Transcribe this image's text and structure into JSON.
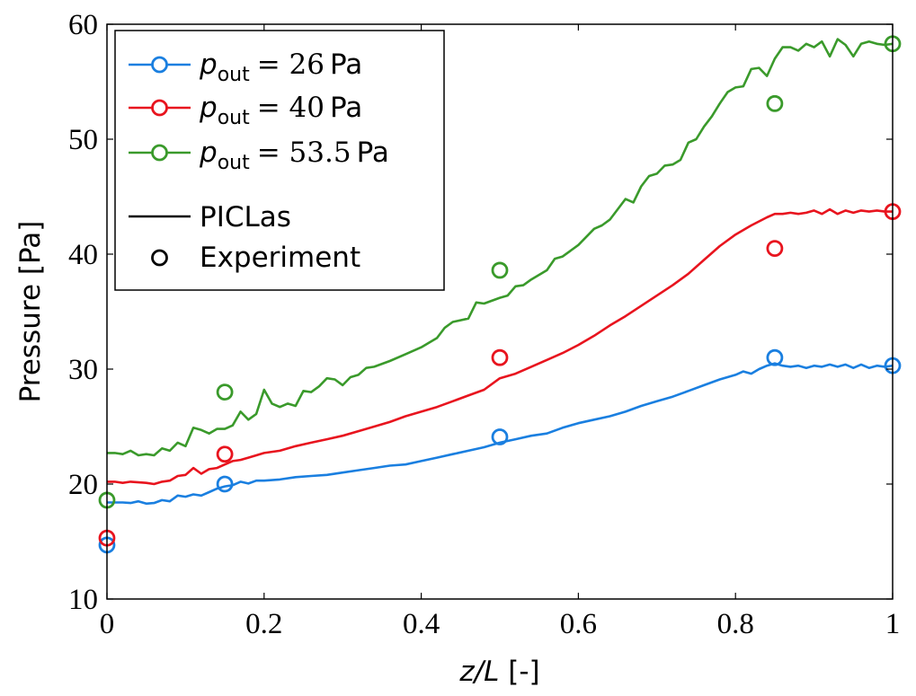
{
  "chart_data": {
    "type": "line",
    "xlabel": "z/L [-]",
    "ylabel": "Pressure [Pa]",
    "xlim": [
      0,
      1
    ],
    "ylim": [
      10,
      60
    ],
    "xticks": [
      "0",
      "0.2",
      "0.4",
      "0.6",
      "0.8",
      "1"
    ],
    "yticks": [
      "10",
      "20",
      "30",
      "40",
      "50",
      "60"
    ],
    "grid": false,
    "legend_position": "top-left",
    "series": [
      {
        "name": "p_out = 26 Pa",
        "sub": "out",
        "value_text": "26",
        "unit": "Pa",
        "color": "#1a7fe0",
        "line": [
          [
            0.0,
            18.4
          ],
          [
            0.01,
            18.4
          ],
          [
            0.02,
            18.4
          ],
          [
            0.03,
            18.35
          ],
          [
            0.04,
            18.5
          ],
          [
            0.05,
            18.3
          ],
          [
            0.06,
            18.35
          ],
          [
            0.07,
            18.6
          ],
          [
            0.08,
            18.5
          ],
          [
            0.09,
            19.0
          ],
          [
            0.1,
            18.9
          ],
          [
            0.11,
            19.1
          ],
          [
            0.12,
            19.0
          ],
          [
            0.13,
            19.3
          ],
          [
            0.14,
            19.6
          ],
          [
            0.15,
            19.8
          ],
          [
            0.16,
            19.9
          ],
          [
            0.17,
            20.2
          ],
          [
            0.18,
            20.05
          ],
          [
            0.19,
            20.3
          ],
          [
            0.2,
            20.3
          ],
          [
            0.22,
            20.4
          ],
          [
            0.24,
            20.6
          ],
          [
            0.26,
            20.7
          ],
          [
            0.28,
            20.8
          ],
          [
            0.3,
            21.0
          ],
          [
            0.32,
            21.2
          ],
          [
            0.34,
            21.4
          ],
          [
            0.36,
            21.6
          ],
          [
            0.38,
            21.7
          ],
          [
            0.4,
            22.0
          ],
          [
            0.42,
            22.3
          ],
          [
            0.44,
            22.6
          ],
          [
            0.46,
            22.9
          ],
          [
            0.48,
            23.2
          ],
          [
            0.5,
            23.6
          ],
          [
            0.52,
            23.9
          ],
          [
            0.54,
            24.2
          ],
          [
            0.56,
            24.4
          ],
          [
            0.58,
            24.9
          ],
          [
            0.6,
            25.3
          ],
          [
            0.62,
            25.6
          ],
          [
            0.64,
            25.9
          ],
          [
            0.66,
            26.3
          ],
          [
            0.68,
            26.8
          ],
          [
            0.7,
            27.2
          ],
          [
            0.72,
            27.6
          ],
          [
            0.74,
            28.1
          ],
          [
            0.76,
            28.6
          ],
          [
            0.78,
            29.1
          ],
          [
            0.8,
            29.5
          ],
          [
            0.81,
            29.8
          ],
          [
            0.82,
            29.6
          ],
          [
            0.83,
            30.0
          ],
          [
            0.84,
            30.3
          ],
          [
            0.85,
            30.5
          ],
          [
            0.86,
            30.3
          ],
          [
            0.87,
            30.2
          ],
          [
            0.88,
            30.3
          ],
          [
            0.89,
            30.1
          ],
          [
            0.9,
            30.3
          ],
          [
            0.91,
            30.2
          ],
          [
            0.92,
            30.4
          ],
          [
            0.93,
            30.2
          ],
          [
            0.94,
            30.4
          ],
          [
            0.95,
            30.1
          ],
          [
            0.96,
            30.4
          ],
          [
            0.97,
            30.1
          ],
          [
            0.98,
            30.3
          ],
          [
            0.99,
            30.2
          ],
          [
            1.0,
            30.3
          ]
        ],
        "experiment": [
          [
            0.0,
            14.7
          ],
          [
            0.15,
            20.0
          ],
          [
            0.5,
            24.1
          ],
          [
            0.85,
            31.0
          ],
          [
            1.0,
            30.3
          ]
        ]
      },
      {
        "name": "p_out = 40 Pa",
        "sub": "out",
        "value_text": "40",
        "unit": "Pa",
        "color": "#e8141e",
        "line": [
          [
            0.0,
            20.2
          ],
          [
            0.01,
            20.2
          ],
          [
            0.02,
            20.1
          ],
          [
            0.03,
            20.2
          ],
          [
            0.04,
            20.15
          ],
          [
            0.05,
            20.1
          ],
          [
            0.06,
            20.0
          ],
          [
            0.07,
            20.2
          ],
          [
            0.08,
            20.3
          ],
          [
            0.09,
            20.7
          ],
          [
            0.1,
            20.8
          ],
          [
            0.11,
            21.4
          ],
          [
            0.12,
            20.9
          ],
          [
            0.13,
            21.3
          ],
          [
            0.14,
            21.4
          ],
          [
            0.15,
            21.7
          ],
          [
            0.16,
            22.0
          ],
          [
            0.17,
            22.1
          ],
          [
            0.18,
            22.3
          ],
          [
            0.19,
            22.5
          ],
          [
            0.2,
            22.7
          ],
          [
            0.22,
            22.9
          ],
          [
            0.24,
            23.3
          ],
          [
            0.26,
            23.6
          ],
          [
            0.28,
            23.9
          ],
          [
            0.3,
            24.2
          ],
          [
            0.32,
            24.6
          ],
          [
            0.34,
            25.0
          ],
          [
            0.36,
            25.4
          ],
          [
            0.38,
            25.9
          ],
          [
            0.4,
            26.3
          ],
          [
            0.42,
            26.7
          ],
          [
            0.44,
            27.2
          ],
          [
            0.46,
            27.7
          ],
          [
            0.48,
            28.2
          ],
          [
            0.5,
            29.2
          ],
          [
            0.52,
            29.6
          ],
          [
            0.54,
            30.2
          ],
          [
            0.56,
            30.8
          ],
          [
            0.58,
            31.4
          ],
          [
            0.6,
            32.1
          ],
          [
            0.62,
            32.9
          ],
          [
            0.64,
            33.8
          ],
          [
            0.66,
            34.6
          ],
          [
            0.68,
            35.5
          ],
          [
            0.7,
            36.4
          ],
          [
            0.72,
            37.3
          ],
          [
            0.74,
            38.3
          ],
          [
            0.76,
            39.5
          ],
          [
            0.78,
            40.7
          ],
          [
            0.8,
            41.7
          ],
          [
            0.82,
            42.5
          ],
          [
            0.84,
            43.2
          ],
          [
            0.85,
            43.5
          ],
          [
            0.86,
            43.5
          ],
          [
            0.87,
            43.6
          ],
          [
            0.88,
            43.5
          ],
          [
            0.89,
            43.6
          ],
          [
            0.9,
            43.8
          ],
          [
            0.91,
            43.5
          ],
          [
            0.92,
            43.9
          ],
          [
            0.93,
            43.5
          ],
          [
            0.94,
            43.8
          ],
          [
            0.95,
            43.6
          ],
          [
            0.96,
            43.8
          ],
          [
            0.97,
            43.7
          ],
          [
            0.98,
            43.8
          ],
          [
            0.99,
            43.7
          ],
          [
            1.0,
            43.7
          ]
        ],
        "experiment": [
          [
            0.0,
            15.3
          ],
          [
            0.15,
            22.6
          ],
          [
            0.5,
            31.0
          ],
          [
            0.85,
            40.5
          ],
          [
            1.0,
            43.7
          ]
        ]
      },
      {
        "name": "p_out = 53.5 Pa",
        "sub": "out",
        "value_text": "53.5",
        "unit": "Pa",
        "color": "#3a9a2b",
        "line": [
          [
            0.0,
            22.7
          ],
          [
            0.01,
            22.7
          ],
          [
            0.02,
            22.6
          ],
          [
            0.03,
            22.9
          ],
          [
            0.04,
            22.5
          ],
          [
            0.05,
            22.6
          ],
          [
            0.06,
            22.5
          ],
          [
            0.07,
            23.1
          ],
          [
            0.08,
            22.9
          ],
          [
            0.09,
            23.6
          ],
          [
            0.1,
            23.3
          ],
          [
            0.11,
            24.9
          ],
          [
            0.12,
            24.7
          ],
          [
            0.13,
            24.4
          ],
          [
            0.14,
            24.8
          ],
          [
            0.15,
            24.8
          ],
          [
            0.16,
            25.1
          ],
          [
            0.17,
            26.3
          ],
          [
            0.18,
            25.6
          ],
          [
            0.19,
            26.1
          ],
          [
            0.2,
            28.2
          ],
          [
            0.21,
            27.0
          ],
          [
            0.22,
            26.7
          ],
          [
            0.23,
            27.0
          ],
          [
            0.24,
            26.8
          ],
          [
            0.25,
            28.1
          ],
          [
            0.26,
            28.0
          ],
          [
            0.27,
            28.5
          ],
          [
            0.28,
            29.2
          ],
          [
            0.29,
            29.1
          ],
          [
            0.3,
            28.6
          ],
          [
            0.31,
            29.3
          ],
          [
            0.32,
            29.5
          ],
          [
            0.33,
            30.1
          ],
          [
            0.34,
            30.2
          ],
          [
            0.36,
            30.7
          ],
          [
            0.38,
            31.3
          ],
          [
            0.4,
            31.9
          ],
          [
            0.42,
            32.7
          ],
          [
            0.43,
            33.6
          ],
          [
            0.44,
            34.1
          ],
          [
            0.46,
            34.4
          ],
          [
            0.47,
            35.8
          ],
          [
            0.48,
            35.7
          ],
          [
            0.5,
            36.2
          ],
          [
            0.51,
            36.4
          ],
          [
            0.52,
            37.2
          ],
          [
            0.53,
            37.3
          ],
          [
            0.54,
            37.8
          ],
          [
            0.56,
            38.6
          ],
          [
            0.57,
            39.6
          ],
          [
            0.58,
            39.8
          ],
          [
            0.6,
            40.8
          ],
          [
            0.62,
            42.2
          ],
          [
            0.63,
            42.5
          ],
          [
            0.64,
            43.0
          ],
          [
            0.66,
            44.8
          ],
          [
            0.67,
            44.5
          ],
          [
            0.68,
            45.9
          ],
          [
            0.69,
            46.8
          ],
          [
            0.7,
            47.0
          ],
          [
            0.71,
            47.7
          ],
          [
            0.72,
            47.8
          ],
          [
            0.73,
            48.2
          ],
          [
            0.74,
            49.7
          ],
          [
            0.75,
            50.0
          ],
          [
            0.76,
            51.1
          ],
          [
            0.77,
            52.0
          ],
          [
            0.78,
            53.1
          ],
          [
            0.79,
            54.1
          ],
          [
            0.8,
            54.5
          ],
          [
            0.81,
            54.6
          ],
          [
            0.82,
            56.1
          ],
          [
            0.83,
            56.2
          ],
          [
            0.84,
            55.5
          ],
          [
            0.85,
            57.0
          ],
          [
            0.86,
            58.0
          ],
          [
            0.87,
            58.0
          ],
          [
            0.88,
            57.7
          ],
          [
            0.89,
            58.3
          ],
          [
            0.9,
            58.0
          ],
          [
            0.91,
            58.5
          ],
          [
            0.92,
            57.2
          ],
          [
            0.93,
            58.7
          ],
          [
            0.94,
            58.2
          ],
          [
            0.95,
            57.2
          ],
          [
            0.96,
            58.3
          ],
          [
            0.97,
            58.5
          ],
          [
            0.98,
            58.3
          ],
          [
            0.99,
            58.2
          ],
          [
            1.0,
            58.3
          ]
        ],
        "experiment": [
          [
            0.0,
            18.6
          ],
          [
            0.15,
            28.0
          ],
          [
            0.5,
            38.6
          ],
          [
            0.85,
            53.1
          ],
          [
            1.0,
            58.3
          ]
        ]
      }
    ],
    "legend_extra": [
      {
        "label": "PICLas",
        "marker": "line"
      },
      {
        "label": "Experiment",
        "marker": "circle"
      }
    ]
  }
}
